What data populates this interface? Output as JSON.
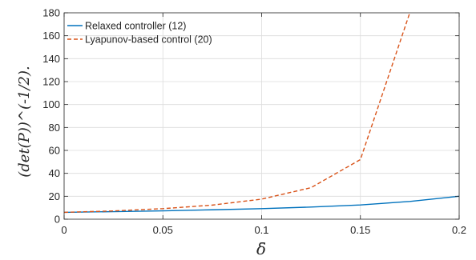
{
  "chart_data": {
    "type": "line",
    "x": [
      0,
      0.025,
      0.05,
      0.075,
      0.1,
      0.125,
      0.15,
      0.175,
      0.2
    ],
    "xlim": [
      0,
      0.2
    ],
    "ylim": [
      0,
      180
    ],
    "xticks": [
      0,
      0.05,
      0.1,
      0.15,
      0.2
    ],
    "xtick_labels": [
      "0",
      "0.05",
      "0.1",
      "0.15",
      "0.2"
    ],
    "yticks": [
      0,
      20,
      40,
      60,
      80,
      100,
      120,
      140,
      160,
      180
    ],
    "ytick_labels": [
      "0",
      "20",
      "40",
      "60",
      "80",
      "100",
      "120",
      "140",
      "160",
      "180"
    ],
    "xlabel": "δ̄",
    "ylabel": "(det(P))^(-1/2).",
    "grid": true,
    "legend_position": "top-left",
    "series": [
      {
        "name": "Relaxed controller (12)",
        "color": "#0072BD",
        "style": "solid",
        "values": [
          6,
          6.6,
          7.3,
          8.2,
          9.2,
          10.6,
          12.4,
          15.5,
          20
        ]
      },
      {
        "name": "Lyapunov-based control (20)",
        "color": "#D95319",
        "style": "dashed",
        "values": [
          6,
          7.2,
          9.2,
          12.3,
          17.5,
          27.5,
          52,
          180,
          null
        ]
      }
    ]
  }
}
